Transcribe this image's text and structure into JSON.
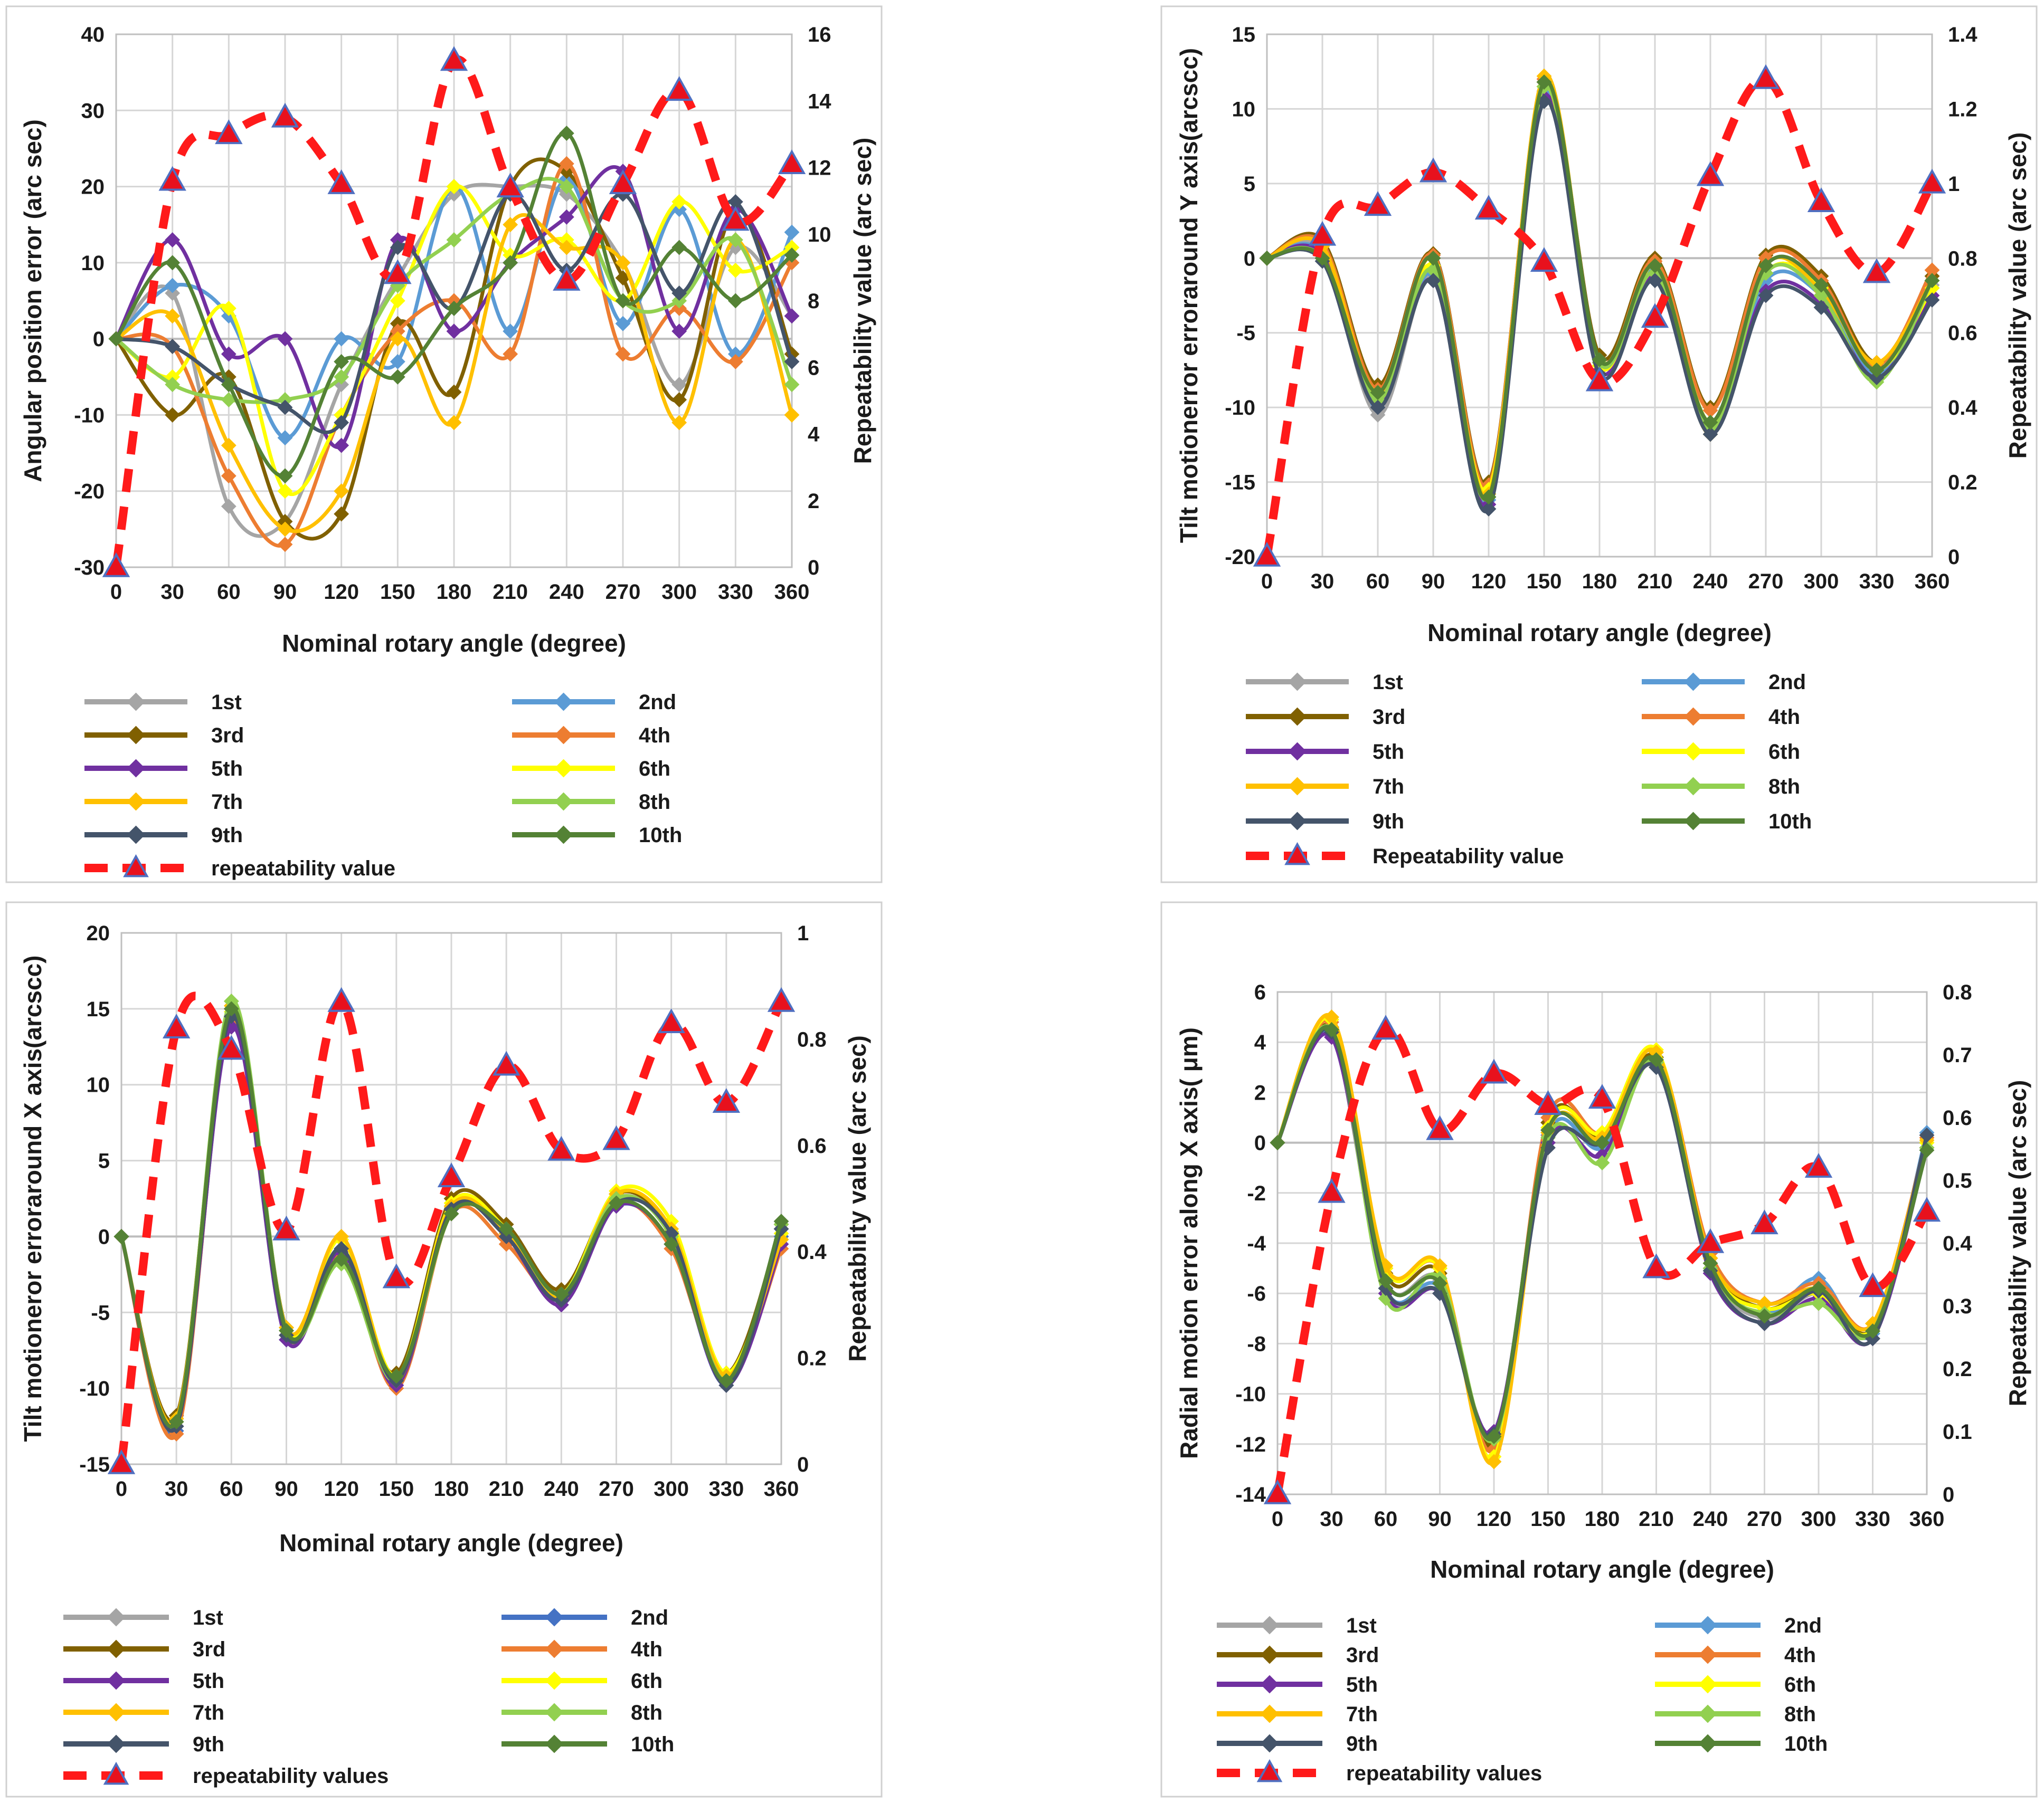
{
  "chart_data": [
    {
      "type": "line",
      "panel": "top-left",
      "xlabel": "Nominal rotary angle (degree)",
      "ylabel": "Angular position error (arc sec)",
      "y2label": "Repeatability value (arc sec)",
      "x": [
        0,
        30,
        60,
        90,
        120,
        150,
        180,
        210,
        240,
        270,
        300,
        330,
        360
      ],
      "xticks": [
        "0",
        "30",
        "60",
        "90",
        "120",
        "150",
        "180",
        "210",
        "240",
        "270",
        "300",
        "330",
        "360"
      ],
      "ylim": [
        -30,
        40
      ],
      "yticks": [
        -30,
        -20,
        -10,
        0,
        10,
        20,
        30,
        40
      ],
      "y2lim": [
        0,
        16
      ],
      "y2ticks": [
        0,
        2,
        4,
        6,
        8,
        10,
        12,
        14,
        16
      ],
      "series": [
        {
          "name": "1st",
          "color": "#a5a5a5",
          "values": [
            0,
            6,
            -22,
            -24,
            -6,
            8,
            19,
            20,
            19,
            10,
            -6,
            12,
            3
          ]
        },
        {
          "name": "2nd",
          "color": "#5b9bd5",
          "values": [
            0,
            7,
            3,
            -13,
            0,
            -3,
            20,
            1,
            21,
            2,
            17,
            -2,
            14
          ]
        },
        {
          "name": "3rd",
          "color": "#806000",
          "values": [
            0,
            -10,
            -5,
            -24,
            -23,
            2,
            -7,
            20,
            22,
            8,
            -8,
            17,
            -2
          ]
        },
        {
          "name": "4th",
          "color": "#ed7d31",
          "values": [
            0,
            -1,
            -18,
            -27,
            -10,
            1,
            5,
            -2,
            23,
            -2,
            4,
            -3,
            10
          ]
        },
        {
          "name": "5th",
          "color": "#7030a0",
          "values": [
            0,
            13,
            -2,
            0,
            -14,
            13,
            1,
            10,
            16,
            22,
            1,
            17,
            3
          ]
        },
        {
          "name": "6th",
          "color": "#ffff00",
          "values": [
            0,
            -5,
            4,
            -20,
            -10,
            5,
            20,
            11,
            13,
            5,
            18,
            9,
            12
          ]
        },
        {
          "name": "7th",
          "color": "#ffc000",
          "values": [
            0,
            3,
            -14,
            -25,
            -20,
            0,
            -11,
            15,
            12,
            10,
            -11,
            13,
            -10
          ]
        },
        {
          "name": "8th",
          "color": "#92d050",
          "values": [
            0,
            -6,
            -8,
            -8,
            -5,
            7,
            13,
            19,
            20,
            5,
            5,
            13,
            -6
          ]
        },
        {
          "name": "9th",
          "color": "#44546a",
          "values": [
            0,
            -1,
            -6,
            -9,
            -11,
            12,
            4,
            19,
            9,
            19,
            6,
            18,
            -3
          ]
        },
        {
          "name": "10th",
          "color": "#548235",
          "values": [
            0,
            10,
            -6,
            -18,
            -3,
            -5,
            4,
            10,
            27,
            5,
            12,
            5,
            11
          ]
        }
      ],
      "repeatability": {
        "name": "repeatability value",
        "values": [
          0,
          11.6,
          13.0,
          13.5,
          11.5,
          8.8,
          15.2,
          11.4,
          8.6,
          11.5,
          14.3,
          10.4,
          12.1
        ]
      }
    },
    {
      "type": "line",
      "panel": "top-right",
      "xlabel": "Nominal rotary angle (degree)",
      "ylabel": "Tilt motionerror erroraround Y axis(arcscc)",
      "y2label": "Repeatability value (arc sec)",
      "x": [
        0,
        30,
        60,
        90,
        120,
        150,
        180,
        210,
        240,
        270,
        300,
        330,
        360
      ],
      "xticks": [
        "0",
        "30",
        "60",
        "90",
        "120",
        "150",
        "180",
        "210",
        "240",
        "270",
        "300",
        "330",
        "360"
      ],
      "ylim": [
        -20,
        15
      ],
      "yticks": [
        -20,
        -15,
        -10,
        -5,
        0,
        5,
        10,
        15
      ],
      "y2lim": [
        0,
        1.4
      ],
      "y2ticks": [
        0,
        0.2,
        0.4,
        0.6,
        0.8,
        1,
        1.2,
        1.4
      ],
      "series": [
        {
          "name": "1st",
          "color": "#a5a5a5",
          "values": [
            0,
            0.5,
            -10.5,
            -1.2,
            -16.0,
            11.0,
            -6.8,
            -1.0,
            -11.0,
            -1.0,
            -2.0,
            -7.5,
            -1.8
          ]
        },
        {
          "name": "2nd",
          "color": "#5b9bd5",
          "values": [
            0,
            0.3,
            -9.8,
            -1.0,
            -16.2,
            11.2,
            -7.0,
            -0.8,
            -11.2,
            -1.5,
            -2.5,
            -7.8,
            -2.0
          ]
        },
        {
          "name": "3rd",
          "color": "#806000",
          "values": [
            0,
            1.2,
            -8.5,
            0.3,
            -15.0,
            11.8,
            -6.5,
            0.0,
            -10.0,
            0.2,
            -1.2,
            -7.0,
            -1.2
          ]
        },
        {
          "name": "4th",
          "color": "#ed7d31",
          "values": [
            0,
            1.0,
            -8.8,
            0.2,
            -15.2,
            12.0,
            -6.8,
            -0.2,
            -10.2,
            0.0,
            -1.5,
            -7.2,
            -0.8
          ]
        },
        {
          "name": "5th",
          "color": "#7030a0",
          "values": [
            0,
            0.2,
            -9.5,
            -1.5,
            -16.5,
            10.8,
            -7.5,
            -1.2,
            -11.5,
            -2.2,
            -3.0,
            -8.0,
            -2.5
          ]
        },
        {
          "name": "6th",
          "color": "#ffff00",
          "values": [
            0,
            0.0,
            -9.0,
            -0.5,
            -15.5,
            11.5,
            -7.2,
            -0.5,
            -11.0,
            -1.0,
            -2.0,
            -7.5,
            -2.0
          ]
        },
        {
          "name": "7th",
          "color": "#ffc000",
          "values": [
            0,
            0.8,
            -9.2,
            0.0,
            -15.8,
            12.2,
            -7.0,
            -0.5,
            -11.8,
            -0.5,
            -2.2,
            -7.0,
            -1.5
          ]
        },
        {
          "name": "8th",
          "color": "#92d050",
          "values": [
            0,
            0.0,
            -9.5,
            -0.8,
            -16.0,
            11.5,
            -7.0,
            -1.0,
            -11.5,
            -1.0,
            -2.5,
            -8.3,
            -1.5
          ]
        },
        {
          "name": "9th",
          "color": "#44546a",
          "values": [
            0,
            -0.2,
            -10.0,
            -1.5,
            -16.8,
            10.5,
            -7.8,
            -1.5,
            -11.8,
            -2.5,
            -3.3,
            -8.0,
            -2.8
          ]
        },
        {
          "name": "10th",
          "color": "#548235",
          "values": [
            0,
            0.0,
            -9.0,
            0.0,
            -16.0,
            11.8,
            -6.8,
            -0.5,
            -11.0,
            -0.5,
            -1.8,
            -7.5,
            -1.5
          ]
        }
      ],
      "repeatability": {
        "name": "Repeatability value",
        "values": [
          0,
          0.86,
          0.94,
          1.03,
          0.93,
          0.79,
          0.47,
          0.64,
          1.02,
          1.28,
          0.95,
          0.76,
          1.0
        ]
      }
    },
    {
      "type": "line",
      "panel": "bottom-left",
      "xlabel": "Nominal rotary angle (degree)",
      "ylabel": "Tilt motioneror erroraround X axis(arcscc)",
      "y2label": "Repeatability value (arc sec)",
      "x": [
        0,
        30,
        60,
        90,
        120,
        150,
        180,
        210,
        240,
        270,
        300,
        330,
        360
      ],
      "xticks": [
        "0",
        "30",
        "60",
        "90",
        "120",
        "150",
        "180",
        "210",
        "240",
        "270",
        "300",
        "330",
        "360"
      ],
      "ylim": [
        -15,
        20
      ],
      "yticks": [
        -15,
        -10,
        -5,
        0,
        5,
        10,
        15,
        20
      ],
      "y2lim": [
        0,
        1
      ],
      "y2ticks": [
        0,
        0.2,
        0.4,
        0.6,
        0.8,
        1
      ],
      "series": [
        {
          "name": "1st",
          "color": "#a5a5a5",
          "values": [
            0,
            -12.5,
            14.5,
            -6.5,
            -1.0,
            -9.5,
            2.0,
            0.5,
            -4.0,
            2.5,
            0.0,
            -9.5,
            0.5
          ]
        },
        {
          "name": "2nd",
          "color": "#4472c4",
          "values": [
            0,
            -12.8,
            14.0,
            -6.8,
            -0.8,
            -9.8,
            1.8,
            0.2,
            -4.2,
            2.0,
            -0.5,
            -9.8,
            0.0
          ]
        },
        {
          "name": "3rd",
          "color": "#806000",
          "values": [
            0,
            -11.8,
            15.0,
            -6.0,
            -1.5,
            -9.0,
            2.5,
            0.8,
            -3.5,
            2.8,
            0.3,
            -9.0,
            0.8
          ]
        },
        {
          "name": "4th",
          "color": "#ed7d31",
          "values": [
            0,
            -13.0,
            14.2,
            -6.5,
            -1.2,
            -10.0,
            1.5,
            -0.5,
            -4.0,
            2.2,
            -0.8,
            -9.5,
            -0.8
          ]
        },
        {
          "name": "5th",
          "color": "#7030a0",
          "values": [
            0,
            -12.5,
            13.8,
            -6.8,
            -1.0,
            -9.8,
            1.8,
            0.0,
            -4.5,
            2.0,
            -0.5,
            -9.8,
            -0.5
          ]
        },
        {
          "name": "6th",
          "color": "#ffff00",
          "values": [
            0,
            -12.2,
            14.8,
            -6.2,
            -0.2,
            -9.2,
            2.2,
            0.5,
            -3.8,
            3.0,
            1.0,
            -9.0,
            0.2
          ]
        },
        {
          "name": "7th",
          "color": "#ffc000",
          "values": [
            0,
            -12.0,
            15.2,
            -6.0,
            0.0,
            -9.5,
            2.0,
            0.2,
            -4.0,
            2.8,
            0.5,
            -9.2,
            -0.2
          ]
        },
        {
          "name": "8th",
          "color": "#92d050",
          "values": [
            0,
            -12.2,
            15.5,
            -6.2,
            -1.8,
            -9.5,
            1.5,
            0.5,
            -3.8,
            2.5,
            0.0,
            -9.5,
            0.8
          ]
        },
        {
          "name": "9th",
          "color": "#44546a",
          "values": [
            0,
            -12.5,
            14.5,
            -6.5,
            -0.8,
            -9.5,
            1.8,
            0.0,
            -4.2,
            2.2,
            0.2,
            -9.8,
            0.5
          ]
        },
        {
          "name": "10th",
          "color": "#548235",
          "values": [
            0,
            -12.2,
            15.0,
            -6.2,
            -1.5,
            -9.2,
            1.5,
            0.5,
            -3.8,
            2.2,
            -0.5,
            -9.5,
            1.0
          ]
        }
      ],
      "repeatability": {
        "name": "repeatability values",
        "values": [
          0,
          0.82,
          0.78,
          0.44,
          0.87,
          0.35,
          0.54,
          0.75,
          0.59,
          0.61,
          0.83,
          0.68,
          0.87
        ]
      }
    },
    {
      "type": "line",
      "panel": "bottom-right",
      "xlabel": "Nominal rotary angle (degree)",
      "ylabel": "Radial motion error along X axis( μm)",
      "y2label": "Repeatability value (arc sec)",
      "x": [
        0,
        30,
        60,
        90,
        120,
        150,
        180,
        210,
        240,
        270,
        300,
        330,
        360
      ],
      "xticks": [
        "0",
        "30",
        "60",
        "90",
        "120",
        "150",
        "180",
        "210",
        "240",
        "270",
        "300",
        "330",
        "360"
      ],
      "ylim": [
        -14,
        6
      ],
      "yticks": [
        -14,
        -12,
        -10,
        -8,
        -6,
        -4,
        -2,
        0,
        2,
        4,
        6
      ],
      "y2lim": [
        0,
        0.8
      ],
      "y2ticks": [
        0,
        0.1,
        0.2,
        0.3,
        0.4,
        0.5,
        0.6,
        0.7,
        0.8
      ],
      "series": [
        {
          "name": "1st",
          "color": "#a5a5a5",
          "values": [
            0,
            4.5,
            -5.5,
            -5.5,
            -11.8,
            0.5,
            0.0,
            3.0,
            -5.0,
            -7.0,
            -6.0,
            -7.5,
            0.0
          ]
        },
        {
          "name": "2nd",
          "color": "#5b9bd5",
          "values": [
            0,
            4.3,
            -5.8,
            -5.8,
            -11.6,
            0.3,
            -0.2,
            3.2,
            -4.8,
            -6.8,
            -5.4,
            -7.6,
            0.4
          ]
        },
        {
          "name": "3rd",
          "color": "#806000",
          "values": [
            0,
            4.6,
            -5.2,
            -5.2,
            -12.0,
            0.8,
            0.2,
            3.4,
            -4.6,
            -6.6,
            -5.8,
            -7.4,
            -0.2
          ]
        },
        {
          "name": "4th",
          "color": "#ed7d31",
          "values": [
            0,
            4.8,
            -5.0,
            -5.0,
            -12.2,
            1.0,
            0.4,
            3.6,
            -4.4,
            -6.4,
            -5.6,
            -7.2,
            0.2
          ]
        },
        {
          "name": "5th",
          "color": "#7030a0",
          "values": [
            0,
            4.2,
            -6.0,
            -6.0,
            -11.5,
            0.0,
            -0.5,
            3.2,
            -5.2,
            -7.2,
            -6.2,
            -7.8,
            -0.2
          ]
        },
        {
          "name": "6th",
          "color": "#ffff00",
          "values": [
            0,
            4.9,
            -5.0,
            -5.0,
            -12.5,
            0.6,
            0.4,
            3.7,
            -4.8,
            -6.6,
            -6.0,
            -7.4,
            0.0
          ]
        },
        {
          "name": "7th",
          "color": "#ffc000",
          "values": [
            0,
            5.0,
            -4.9,
            -4.9,
            -12.7,
            0.4,
            0.2,
            3.6,
            -4.6,
            -6.4,
            -5.8,
            -7.2,
            0.1
          ]
        },
        {
          "name": "8th",
          "color": "#92d050",
          "values": [
            0,
            4.5,
            -6.2,
            -5.4,
            -11.8,
            0.2,
            -0.8,
            3.2,
            -5.0,
            -6.8,
            -6.4,
            -7.5,
            -0.2
          ]
        },
        {
          "name": "9th",
          "color": "#44546a",
          "values": [
            0,
            4.4,
            -5.8,
            -6.0,
            -11.6,
            -0.2,
            0.0,
            3.0,
            -5.1,
            -7.2,
            -5.9,
            -7.8,
            0.3
          ]
        },
        {
          "name": "10th",
          "color": "#548235",
          "values": [
            0,
            4.5,
            -5.5,
            -5.6,
            -11.7,
            0.5,
            0.0,
            3.3,
            -4.8,
            -6.9,
            -5.8,
            -7.5,
            -0.3
          ]
        }
      ],
      "repeatability": {
        "name": "repeatability values",
        "values": [
          0,
          0.48,
          0.74,
          0.58,
          0.67,
          0.62,
          0.63,
          0.36,
          0.4,
          0.43,
          0.52,
          0.33,
          0.45
        ]
      }
    }
  ]
}
